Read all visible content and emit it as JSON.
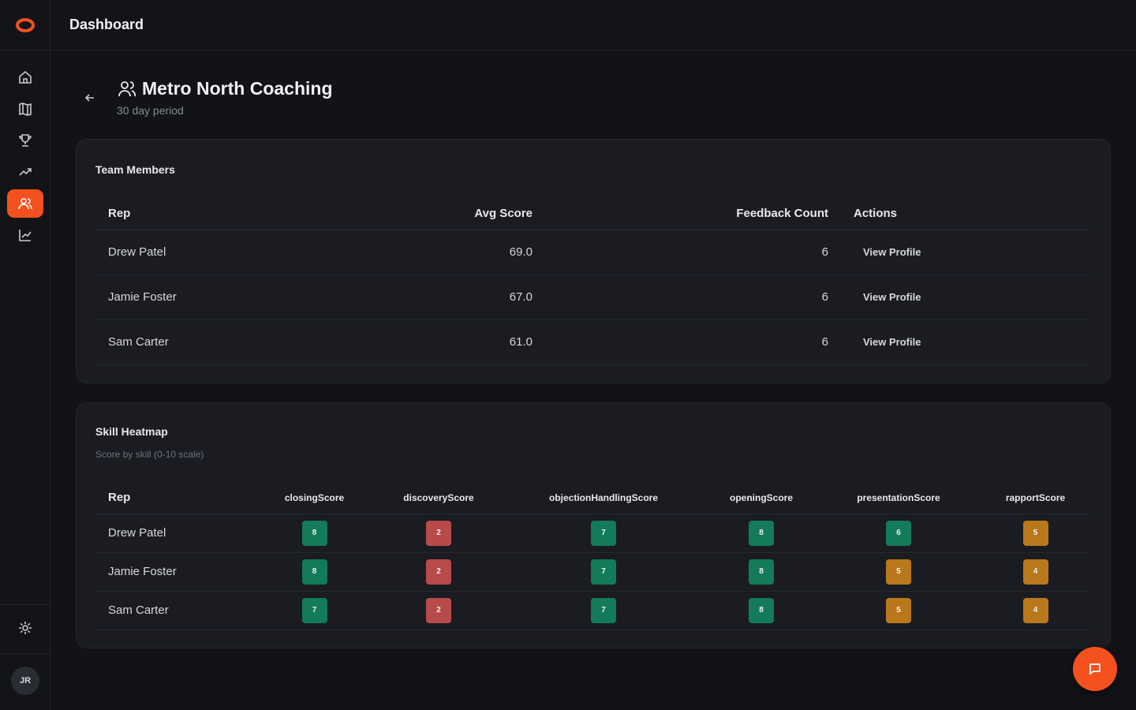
{
  "colors": {
    "accent": "#f4511e",
    "good": "#137a5a",
    "bad": "#b84a4a",
    "mid": "#b9781a"
  },
  "header": {
    "title": "Dashboard"
  },
  "sidebar": {
    "items": [
      {
        "icon": "home-icon",
        "active": false
      },
      {
        "icon": "map-icon",
        "active": false
      },
      {
        "icon": "trophy-icon",
        "active": false
      },
      {
        "icon": "trend-icon",
        "active": false
      },
      {
        "icon": "users-icon",
        "active": true
      },
      {
        "icon": "chart-icon",
        "active": false
      }
    ],
    "avatar_initials": "JR"
  },
  "page": {
    "title": "Metro North Coaching",
    "subtitle": "30 day period"
  },
  "members": {
    "title": "Team Members",
    "columns": [
      "Rep",
      "Avg Score",
      "Feedback Count",
      "Actions"
    ],
    "rows": [
      {
        "rep": "Drew Patel",
        "avg": "69.0",
        "count": "6",
        "action": "View Profile"
      },
      {
        "rep": "Jamie Foster",
        "avg": "67.0",
        "count": "6",
        "action": "View Profile"
      },
      {
        "rep": "Sam Carter",
        "avg": "61.0",
        "count": "6",
        "action": "View Profile"
      }
    ]
  },
  "heatmap": {
    "title": "Skill Heatmap",
    "subtitle": "Score by skill (0-10 scale)",
    "rep_header": "Rep",
    "skills": [
      "closingScore",
      "discoveryScore",
      "objectionHandlingScore",
      "openingScore",
      "presentationScore",
      "rapportScore"
    ],
    "rows": [
      {
        "rep": "Drew Patel",
        "scores": [
          "8",
          "2",
          "7",
          "8",
          "6",
          "5"
        ],
        "levels": [
          "g",
          "r",
          "g",
          "g",
          "g",
          "y"
        ]
      },
      {
        "rep": "Jamie Foster",
        "scores": [
          "8",
          "2",
          "7",
          "8",
          "5",
          "4"
        ],
        "levels": [
          "g",
          "r",
          "g",
          "g",
          "y",
          "y"
        ]
      },
      {
        "rep": "Sam Carter",
        "scores": [
          "7",
          "2",
          "7",
          "8",
          "5",
          "4"
        ],
        "levels": [
          "g",
          "r",
          "g",
          "g",
          "y",
          "y"
        ]
      }
    ]
  }
}
